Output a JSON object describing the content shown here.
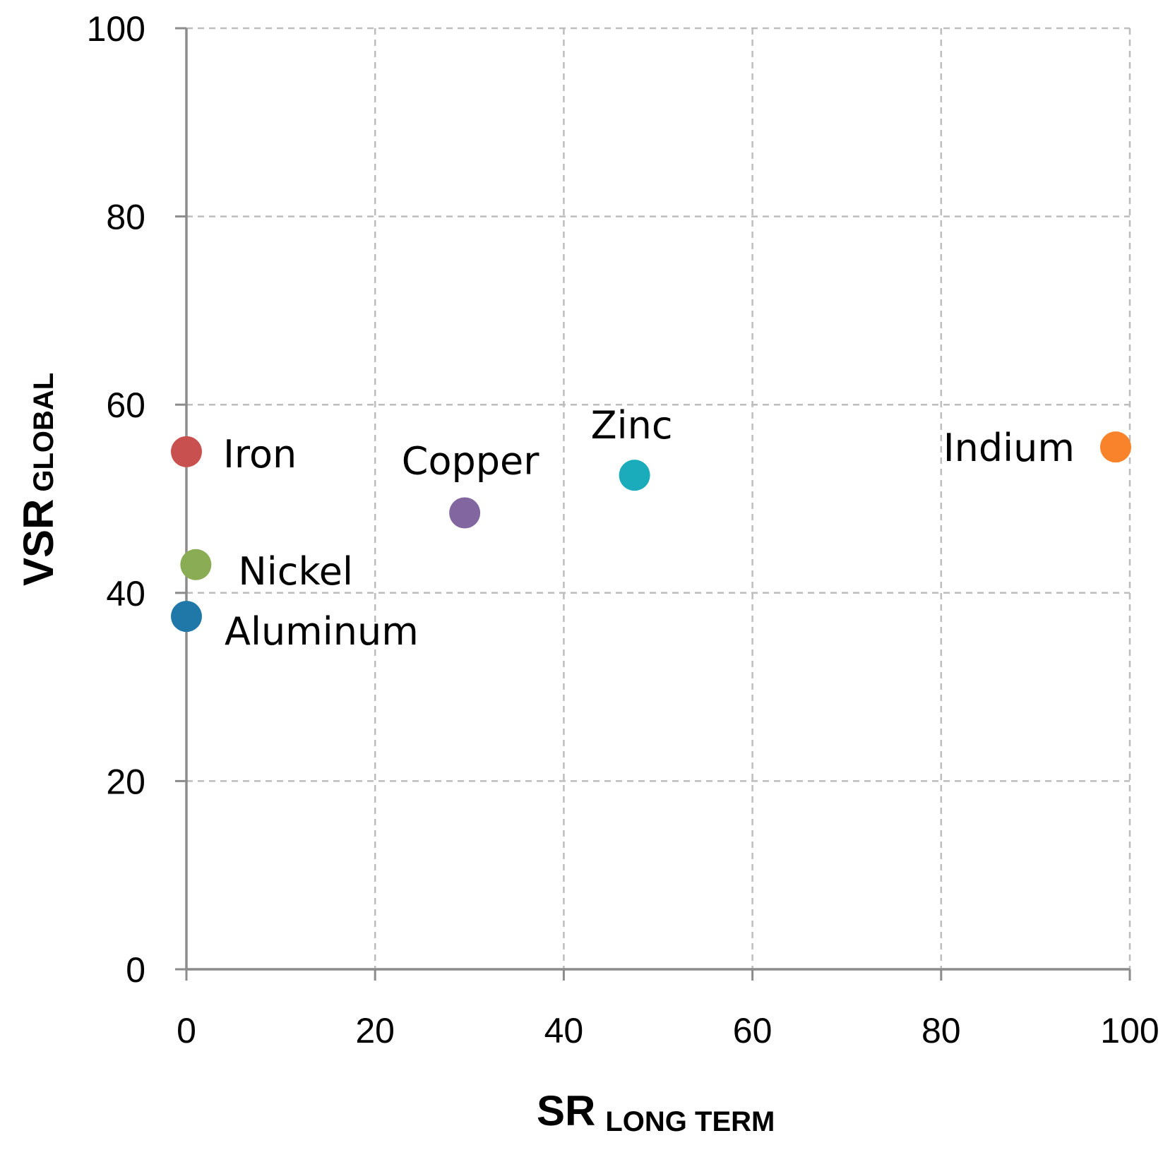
{
  "chart_data": {
    "type": "scatter",
    "title": "",
    "xlabel": {
      "main": "SR",
      "sub": "LONG TERM"
    },
    "ylabel": {
      "main": "VSR",
      "sub": "GLOBAL"
    },
    "xlim": [
      0,
      100
    ],
    "ylim": [
      0,
      100
    ],
    "xticks": [
      0,
      20,
      40,
      60,
      80,
      100
    ],
    "yticks": [
      0,
      20,
      40,
      60,
      80,
      100
    ],
    "grid": true,
    "points": [
      {
        "label": "Iron",
        "x": 0,
        "y": 55,
        "color": "#C8504E"
      },
      {
        "label": "Nickel",
        "x": 1,
        "y": 43,
        "color": "#8AAC54"
      },
      {
        "label": "Aluminum",
        "x": 0,
        "y": 37.5,
        "color": "#1F78A8"
      },
      {
        "label": "Copper",
        "x": 29.5,
        "y": 48.5,
        "color": "#8266A0"
      },
      {
        "label": "Zinc",
        "x": 47.5,
        "y": 52.5,
        "color": "#1AACBA"
      },
      {
        "label": "Indium",
        "x": 98.5,
        "y": 55.5,
        "color": "#F8832A"
      }
    ]
  }
}
